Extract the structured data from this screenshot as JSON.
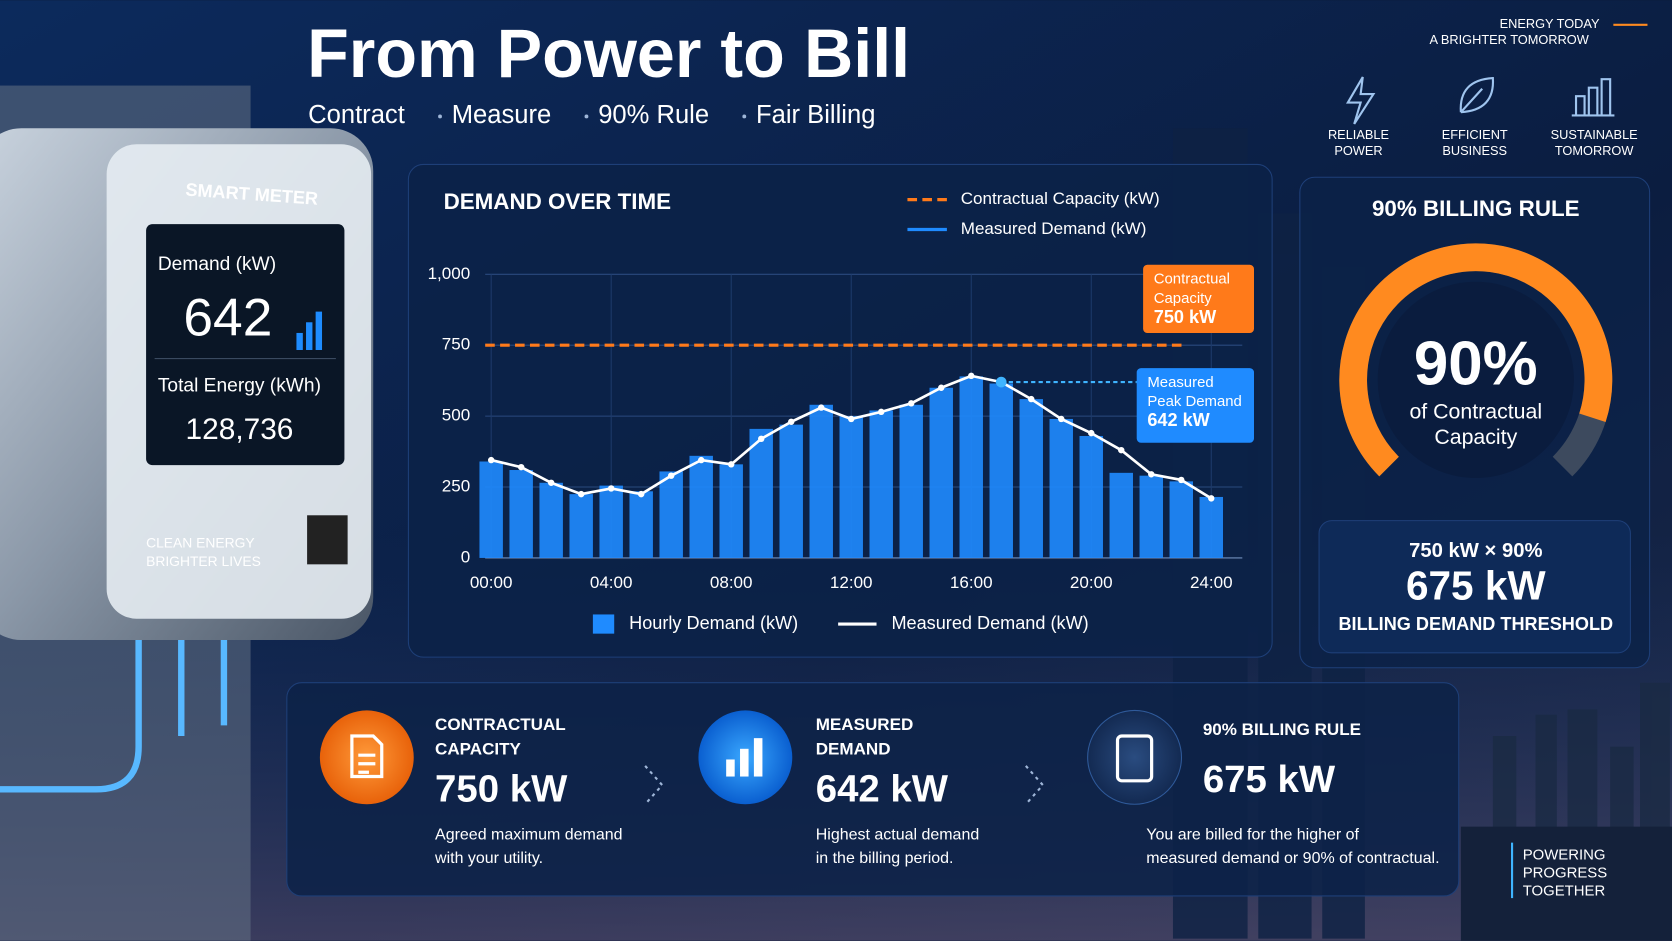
{
  "header": {
    "title": "From Power to",
    "title_highlight": "Bill",
    "subtitle": [
      "Contract",
      "Measure",
      "90% Rule",
      "Fair Billing"
    ]
  },
  "brand": [
    "ENERGY TODAY",
    "A BRIGHTER TOMORROW"
  ],
  "badges": [
    {
      "label": [
        "RELIABLE",
        "POWER"
      ]
    },
    {
      "label": [
        "EFFICIENT",
        "BUSINESS"
      ]
    },
    {
      "label": [
        "SUSTAINABLE",
        "TOMORROW"
      ]
    }
  ],
  "meter": {
    "title": "SMART METER",
    "demand_label": "Demand (kW)",
    "demand": "642",
    "energy_label": "Total Energy (kWh)",
    "energy": "128,736",
    "slogan": [
      "CLEAN ENERGY",
      "BRIGHTER LIVES"
    ]
  },
  "chart_data": {
    "type": "bar",
    "title": "DEMAND OVER TIME",
    "x": [
      0,
      1,
      2,
      3,
      4,
      5,
      6,
      7,
      8,
      9,
      10,
      11,
      12,
      13,
      14,
      15,
      16,
      17,
      18,
      19,
      20,
      21,
      22,
      23,
      24
    ],
    "xlim": [
      -0.2,
      24.5
    ],
    "xticks": [
      {
        "value": 0,
        "label": "00:00"
      },
      {
        "value": 4,
        "label": "04:00"
      },
      {
        "value": 8,
        "label": "08:00"
      },
      {
        "value": 12,
        "label": "12:00"
      },
      {
        "value": 16,
        "label": "16:00"
      },
      {
        "value": 20,
        "label": "20:00"
      },
      {
        "value": 24,
        "label": "24:00"
      }
    ],
    "ylim": [
      0,
      1000
    ],
    "yticks": [
      0,
      250,
      500,
      750,
      {
        "value": 1000,
        "label": "1,000"
      }
    ],
    "grid": true,
    "series": [
      {
        "name": "Hourly Demand (kW)",
        "type": "bar",
        "color": "#1f8bff",
        "values": [
          340,
          310,
          265,
          225,
          255,
          235,
          305,
          360,
          330,
          455,
          470,
          540,
          500,
          520,
          540,
          600,
          640,
          615,
          560,
          490,
          430,
          300,
          290,
          270,
          215
        ]
      },
      {
        "name": "Measured Demand (kW)",
        "type": "line",
        "color": "#ffffff",
        "values": [
          345,
          320,
          265,
          225,
          245,
          225,
          290,
          345,
          330,
          420,
          480,
          530,
          490,
          515,
          545,
          600,
          642,
          620,
          560,
          490,
          440,
          380,
          295,
          275,
          210
        ]
      }
    ],
    "reference_lines": [
      {
        "name": "Contractual Capacity (kW)",
        "value": 750,
        "color": "#ff7a1a"
      }
    ],
    "annotations": [
      {
        "lines": [
          "Contractual",
          "Capacity",
          "750 kW"
        ],
        "color": "#ff7a1a"
      },
      {
        "lines": [
          "Measured",
          "Peak Demand",
          "642 kW"
        ],
        "color": "#1f8bff"
      }
    ]
  },
  "gauge": {
    "title": "90% BILLING RULE",
    "value": 90,
    "value_label": "90%",
    "caption": [
      "of Contractual",
      "Capacity"
    ],
    "formula": "750 kW × 90%",
    "result": "675 kW",
    "result_label": "BILLING DEMAND THRESHOLD"
  },
  "cards": [
    {
      "heading": [
        "CONTRACTUAL",
        "CAPACITY"
      ],
      "value": "750 kW",
      "color": "#ff8a1f",
      "description": [
        "Agreed maximum demand",
        "with your utility."
      ]
    },
    {
      "heading": [
        "MEASURED",
        "DEMAND"
      ],
      "value": "642 kW",
      "color": "#3fb4ff",
      "description": [
        "Highest actual demand",
        "in the billing period."
      ]
    },
    {
      "heading": [
        "90% BILLING RULE"
      ],
      "value": "675 kW",
      "color": "#ff8a1f",
      "description": [
        "You are billed for the higher of",
        "measured demand or 90% of contractual."
      ]
    }
  ],
  "footer": [
    "POWERING",
    "PROGRESS",
    "TOGETHER"
  ]
}
